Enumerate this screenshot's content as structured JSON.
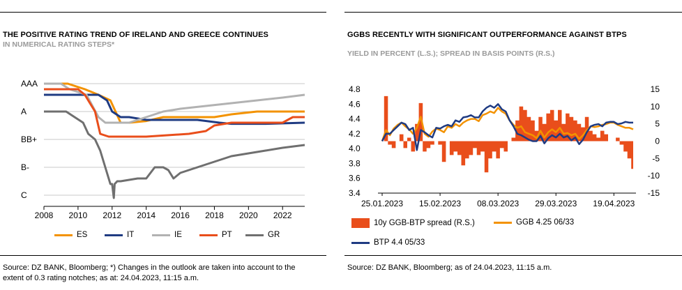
{
  "left": {
    "title": "THE POSITIVE RATING TREND OF IRELAND AND GREECE CONTINUES",
    "subtitle": "IN NUMERICAL RATING STEPS*",
    "source": "Source: DZ BANK, Bloomberg; *) Changes in the outlook are taken into account to the extent of 0.3 rating notches; as at: 24.04.2023, 11:15 a.m."
  },
  "right": {
    "title": "GGBS RECENTLY WITH SIGNIFICANT OUTPERFORMANCE AGAINST BTPS",
    "subtitle": "YIELD IN PERCENT (L.S.); SPREAD IN BASIS POINTS (R.S.)",
    "source": "Source: DZ BANK, Bloomberg; as of 24.04.2023, 11:15 a.m."
  },
  "chart_data": [
    {
      "type": "line",
      "title": "THE POSITIVE RATING TREND OF IRELAND AND GREECE CONTINUES",
      "subtitle": "IN NUMERICAL RATING STEPS*",
      "y_labels": [
        "AAA",
        "A",
        "BB+",
        "B-",
        "C"
      ],
      "y_label_values": [
        22,
        17,
        12,
        7,
        2
      ],
      "ylim": [
        0,
        24
      ],
      "xlim": [
        2008,
        2023.3
      ],
      "x_ticks": [
        "2008",
        "2010",
        "2012",
        "2014",
        "2016",
        "2018",
        "2020",
        "2022"
      ],
      "grid": true,
      "legend_position": "bottom",
      "series": [
        {
          "name": "ES",
          "color": "#f39200",
          "x": [
            2008,
            2009.4,
            2010.4,
            2011.2,
            2011.9,
            2012.5,
            2013.0,
            2014.0,
            2015.0,
            2018.0,
            2019.0,
            2020.5,
            2023.3
          ],
          "y": [
            22,
            22,
            21,
            20,
            19,
            15,
            15,
            15.3,
            16,
            16,
            16.5,
            17,
            17
          ]
        },
        {
          "name": "IT",
          "color": "#1f3b82",
          "x": [
            2008,
            2011.2,
            2011.7,
            2012.0,
            2012.5,
            2013.0,
            2014.0,
            2017.0,
            2018.3,
            2019.0,
            2021.0,
            2023.3
          ],
          "y": [
            20,
            20,
            19,
            17,
            16,
            16,
            15.5,
            15.5,
            15,
            14.8,
            14.8,
            15
          ]
        },
        {
          "name": "IE",
          "color": "#b2b2b2",
          "x": [
            2008,
            2009.0,
            2009.5,
            2010.5,
            2011.2,
            2011.6,
            2012.0,
            2013.0,
            2014.0,
            2015.0,
            2016.0,
            2017.5,
            2019.0,
            2020.5,
            2022.0,
            2023.3
          ],
          "y": [
            22,
            22,
            21,
            20,
            16,
            15,
            15,
            15,
            16,
            17,
            17.5,
            18,
            18.5,
            19,
            19.5,
            20
          ]
        },
        {
          "name": "PT",
          "color": "#e94e1b",
          "x": [
            2008,
            2010.0,
            2010.4,
            2011.0,
            2011.3,
            2011.8,
            2012.5,
            2014.0,
            2016.5,
            2017.5,
            2018.0,
            2019.0,
            2022.0,
            2022.6,
            2023.3
          ],
          "y": [
            21,
            21,
            20,
            17,
            13,
            12.5,
            12.5,
            12.5,
            13,
            13.5,
            14.5,
            15,
            15,
            16,
            16
          ]
        },
        {
          "name": "GR",
          "color": "#6f6f6f",
          "x": [
            2008,
            2009.3,
            2009.8,
            2010.3,
            2010.6,
            2011.0,
            2011.3,
            2011.6,
            2011.9,
            2012.0,
            2012.1,
            2012.15,
            2012.3,
            2012.5,
            2013.5,
            2014.0,
            2014.5,
            2015.0,
            2015.3,
            2015.6,
            2015.8,
            2016.0,
            2017.0,
            2018.0,
            2019.0,
            2020.0,
            2021.0,
            2022.0,
            2023.3
          ],
          "y": [
            17,
            17,
            16,
            15,
            13,
            12,
            10,
            7,
            4,
            4,
            1.5,
            4,
            4.5,
            4.5,
            5,
            5,
            7,
            7,
            6.5,
            5,
            5.5,
            6,
            7,
            8,
            9,
            9.5,
            10,
            10.5,
            11
          ]
        }
      ]
    },
    {
      "type": "line",
      "title": "GGBS RECENTLY WITH SIGNIFICANT OUTPERFORMANCE AGAINST BTPS",
      "subtitle": "YIELD IN PERCENT (L.S.); SPREAD IN BASIS POINTS (R.S.)",
      "x_ticks": [
        "25.01.2023",
        "15.02.2023",
        "08.03.2023",
        "29.03.2023",
        "19.04.2023"
      ],
      "x_tick_index": [
        0,
        15,
        30,
        45,
        60
      ],
      "y_left_ticks": [
        "4.8",
        "4.6",
        "4.4",
        "4.2",
        "4.0",
        "3.8",
        "3.6",
        "3.4"
      ],
      "ylim_left": [
        3.4,
        4.8
      ],
      "y_right_ticks": [
        "15",
        "10",
        "5",
        "0",
        "-5",
        "-10",
        "-15"
      ],
      "ylim_right": [
        -15,
        15
      ],
      "legend_position": "bottom",
      "series": [
        {
          "name": "10y GGB-BTP spread (R.S.)",
          "axis": "right",
          "kind": "area",
          "color": "#e94e1b",
          "values": [
            0,
            13,
            -1,
            -2,
            0,
            2,
            -2,
            1,
            -3,
            5,
            11,
            -3,
            -2,
            -1,
            0,
            -1,
            -6,
            0,
            -4,
            -3,
            -4,
            -7,
            -5,
            -4,
            -2,
            -4,
            -3,
            -9,
            -5,
            -3,
            -5,
            -2,
            -3,
            0,
            1,
            6,
            10,
            9,
            7,
            6,
            3,
            7,
            5,
            8,
            9,
            6,
            9,
            5,
            8,
            7,
            6,
            5,
            4,
            7,
            3,
            2,
            1,
            3,
            2,
            0,
            0,
            1,
            -1,
            -3,
            -5,
            -8
          ]
        },
        {
          "name": "GGB 4.25 06/33",
          "axis": "left",
          "color": "#f39200",
          "values": [
            4.1,
            4.25,
            4.18,
            4.27,
            4.32,
            4.35,
            4.3,
            4.26,
            4.2,
            4.28,
            4.43,
            4.2,
            4.16,
            4.23,
            4.27,
            4.25,
            4.22,
            4.3,
            4.28,
            4.33,
            4.3,
            4.35,
            4.38,
            4.4,
            4.4,
            4.37,
            4.45,
            4.47,
            4.5,
            4.48,
            4.55,
            4.5,
            4.47,
            4.38,
            4.32,
            4.28,
            4.3,
            4.22,
            4.2,
            4.18,
            4.14,
            4.24,
            4.15,
            4.22,
            4.26,
            4.22,
            4.28,
            4.2,
            4.21,
            4.18,
            4.2,
            4.13,
            4.18,
            4.25,
            4.3,
            4.29,
            4.3,
            4.32,
            4.33,
            4.35,
            4.35,
            4.32,
            4.3,
            4.28,
            4.28,
            4.26
          ]
        },
        {
          "name": "BTP 4.4 05/33",
          "axis": "left",
          "color": "#1f3b82",
          "values": [
            4.1,
            4.2,
            4.2,
            4.25,
            4.3,
            4.35,
            4.33,
            4.25,
            4.28,
            3.98,
            4.25,
            4.22,
            4.18,
            4.15,
            4.28,
            4.27,
            4.3,
            4.32,
            4.3,
            4.38,
            4.36,
            4.42,
            4.43,
            4.45,
            4.42,
            4.42,
            4.5,
            4.55,
            4.58,
            4.55,
            4.6,
            4.53,
            4.5,
            4.38,
            4.3,
            4.2,
            4.18,
            4.15,
            4.12,
            4.1,
            4.1,
            4.17,
            4.07,
            4.14,
            4.18,
            4.15,
            4.2,
            4.15,
            4.17,
            4.11,
            4.15,
            4.06,
            4.12,
            4.22,
            4.3,
            4.32,
            4.33,
            4.3,
            4.35,
            4.36,
            4.36,
            4.33,
            4.34,
            4.36,
            4.35,
            4.35
          ]
        }
      ]
    }
  ]
}
